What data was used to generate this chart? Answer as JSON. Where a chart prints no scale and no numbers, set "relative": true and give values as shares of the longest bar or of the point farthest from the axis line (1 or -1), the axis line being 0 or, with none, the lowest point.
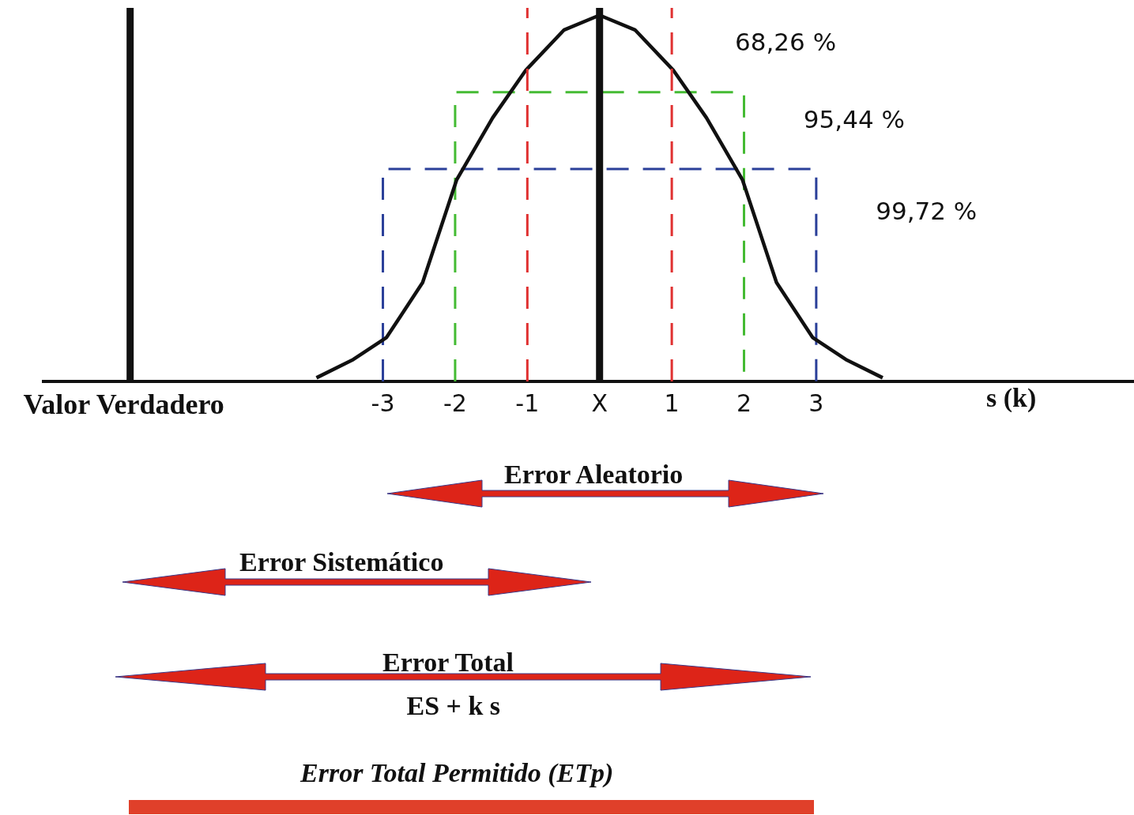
{
  "chart_data": {
    "type": "line",
    "relative": true,
    "xlabel": "s (k)",
    "xlim": [
      -7.7,
      7.4
    ],
    "xticks": [
      -3,
      -2,
      -1,
      {
        "value": 0,
        "label": "X"
      },
      1,
      2,
      3
    ],
    "grid": false,
    "legend": false,
    "marker": "none",
    "line_style": "solid",
    "series": [
      {
        "color": "#111111",
        "x": [
          -3.92,
          -3.41,
          -2.95,
          -2.45,
          -1.98,
          -1.48,
          -1.02,
          -0.49,
          0,
          0.49,
          1.02,
          1.48,
          1.98,
          2.45,
          2.95,
          3.41,
          3.92
        ],
        "values": [
          0.01,
          0.06,
          0.12,
          0.27,
          0.55,
          0.72,
          0.85,
          0.96,
          1,
          0.96,
          0.85,
          0.72,
          0.55,
          0.27,
          0.12,
          0.06,
          0.01
        ]
      },
      {
        "color": "#44bb33",
        "line_style": "dashed",
        "x": [
          -2,
          -2,
          2,
          2
        ],
        "values": [
          0,
          0.79,
          0.79,
          0
        ]
      },
      {
        "color": "#2a3f99",
        "line_style": "dashed",
        "x": [
          -3,
          -3,
          3,
          3
        ],
        "values": [
          0,
          0.58,
          0.58,
          0
        ]
      }
    ],
    "ref_lines": [
      {
        "axis": "x",
        "value": -6.5,
        "label": "Valor Verdadero",
        "color": "#111111",
        "line_style": "solid"
      },
      {
        "axis": "x",
        "value": 0,
        "color": "#111111",
        "line_style": "solid"
      },
      {
        "axis": "x",
        "value": -1,
        "color": "#e03030",
        "line_style": "dashed"
      },
      {
        "axis": "x",
        "value": 1,
        "color": "#e03030",
        "line_style": "dashed"
      }
    ],
    "annotations": [
      "68,26 %",
      "95,44 %",
      "99,72 %",
      "Error Aleatorio",
      "Error Sistemático",
      "Error Total",
      "ES + k s",
      "Error Total Permitido (ETp)"
    ]
  }
}
